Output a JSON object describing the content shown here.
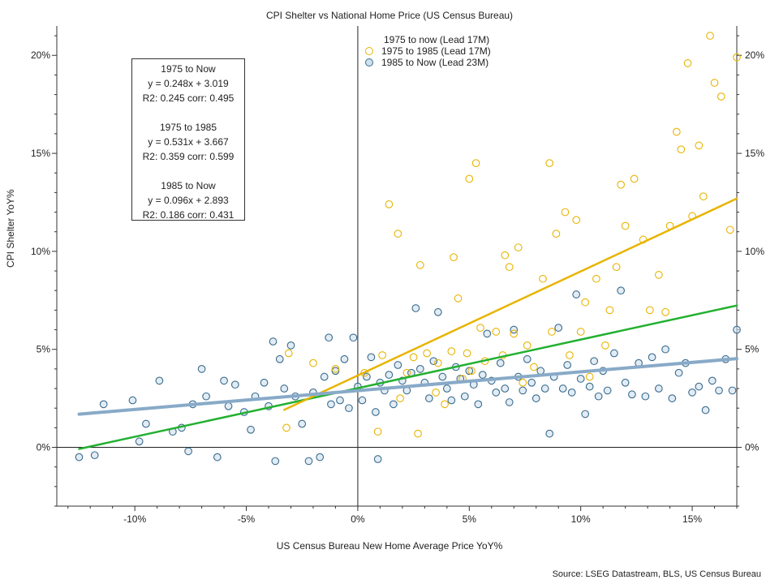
{
  "title": "CPI Shelter vs National Home Price (US Census Bureau)",
  "source": "Source: LSEG Datastream, BLS, US Census Bureau",
  "colors": {
    "yellow": "#e8b400",
    "blue": "#88aac8",
    "green": "#22b030",
    "dark_edge": "#3a6b8c"
  },
  "stats_box": {
    "b1_title": "1975 to Now",
    "b1_eq": "y = 0.248x + 3.019",
    "b1_r2": "R2: 0.245  corr: 0.495",
    "b2_title": "1975 to 1985",
    "b2_eq": "y = 0.531x + 3.667",
    "b2_r2": "R2: 0.359  corr: 0.599",
    "b3_title": "1985 to Now",
    "b3_eq": "y = 0.096x + 2.893",
    "b3_r2": "R2: 0.186  corr: 0.431"
  },
  "chart_data": {
    "type": "scatter",
    "title": "CPI Shelter vs National Home Price (US Census Bureau)",
    "xlabel": "US Census Bureau New Home Average Price YoY%",
    "ylabel": "CPI Shelter YoY%",
    "xlim": [
      -13.5,
      17
    ],
    "ylim": [
      -3,
      21.5
    ],
    "x_ticks": [
      -10,
      -5,
      0,
      5,
      10,
      15
    ],
    "x_tick_labels": [
      "-10%",
      "-5%",
      "0%",
      "5%",
      "10%",
      "15%"
    ],
    "y_ticks": [
      0,
      5,
      10,
      15,
      20
    ],
    "y_tick_labels": [
      "0%",
      "5%",
      "10%",
      "15%",
      "20%"
    ],
    "legend": {
      "placement": "top-center",
      "header": "1975 to now (Lead 17M)",
      "entries": [
        "1975 to 1985 (Lead 17M)",
        "1985 to Now (Lead 23M)"
      ]
    },
    "series": [
      {
        "name": "1975 to 1985 (Lead 17M)",
        "color": "#e8b400",
        "points": [
          [
            -3.2,
            1.0
          ],
          [
            -3.1,
            4.8
          ],
          [
            -2.0,
            4.3
          ],
          [
            -1.0,
            4.0
          ],
          [
            0.3,
            3.8
          ],
          [
            0.9,
            0.8
          ],
          [
            1.1,
            4.7
          ],
          [
            1.4,
            12.4
          ],
          [
            1.8,
            10.9
          ],
          [
            1.9,
            2.5
          ],
          [
            2.2,
            3.8
          ],
          [
            2.5,
            4.6
          ],
          [
            2.7,
            0.7
          ],
          [
            2.8,
            9.3
          ],
          [
            3.1,
            4.8
          ],
          [
            3.5,
            2.8
          ],
          [
            3.6,
            4.3
          ],
          [
            3.9,
            2.2
          ],
          [
            4.2,
            4.9
          ],
          [
            4.3,
            9.7
          ],
          [
            4.5,
            7.6
          ],
          [
            4.7,
            3.5
          ],
          [
            4.9,
            4.8
          ],
          [
            5.0,
            13.7
          ],
          [
            5.1,
            3.9
          ],
          [
            5.3,
            14.5
          ],
          [
            5.5,
            6.1
          ],
          [
            5.7,
            4.4
          ],
          [
            6.2,
            5.9
          ],
          [
            6.5,
            4.7
          ],
          [
            6.6,
            9.8
          ],
          [
            6.8,
            9.2
          ],
          [
            7.0,
            5.8
          ],
          [
            7.2,
            10.2
          ],
          [
            7.4,
            3.3
          ],
          [
            7.6,
            5.2
          ],
          [
            7.9,
            4.1
          ],
          [
            8.3,
            8.6
          ],
          [
            8.6,
            14.5
          ],
          [
            8.7,
            5.9
          ],
          [
            8.9,
            10.9
          ],
          [
            9.3,
            12.0
          ],
          [
            9.5,
            4.7
          ],
          [
            9.8,
            11.6
          ],
          [
            10.0,
            5.9
          ],
          [
            10.2,
            7.4
          ],
          [
            10.4,
            3.6
          ],
          [
            10.7,
            8.6
          ],
          [
            11.1,
            5.2
          ],
          [
            11.3,
            7.0
          ],
          [
            11.6,
            9.2
          ],
          [
            11.8,
            13.4
          ],
          [
            12.0,
            11.3
          ],
          [
            12.4,
            13.7
          ],
          [
            12.8,
            10.6
          ],
          [
            13.1,
            7.0
          ],
          [
            13.5,
            8.8
          ],
          [
            13.8,
            6.9
          ],
          [
            14.0,
            11.3
          ],
          [
            14.3,
            16.1
          ],
          [
            14.5,
            15.2
          ],
          [
            14.8,
            19.6
          ],
          [
            15.0,
            11.8
          ],
          [
            15.3,
            15.4
          ],
          [
            15.5,
            12.8
          ],
          [
            15.8,
            21.0
          ],
          [
            16.0,
            18.6
          ],
          [
            16.3,
            17.9
          ],
          [
            16.7,
            11.1
          ],
          [
            17.0,
            19.9
          ]
        ]
      },
      {
        "name": "1985 to Now (Lead 23M)",
        "color": "#88aac8",
        "points": [
          [
            -12.5,
            -0.5
          ],
          [
            -11.8,
            -0.4
          ],
          [
            -11.4,
            2.2
          ],
          [
            -10.1,
            2.4
          ],
          [
            -9.8,
            0.3
          ],
          [
            -9.5,
            1.2
          ],
          [
            -8.9,
            3.4
          ],
          [
            -8.3,
            0.8
          ],
          [
            -7.9,
            1.0
          ],
          [
            -7.6,
            -0.2
          ],
          [
            -7.4,
            2.2
          ],
          [
            -7.0,
            4.0
          ],
          [
            -6.8,
            2.6
          ],
          [
            -6.3,
            -0.5
          ],
          [
            -6.0,
            3.4
          ],
          [
            -5.8,
            2.1
          ],
          [
            -5.5,
            3.2
          ],
          [
            -5.1,
            1.8
          ],
          [
            -4.8,
            0.9
          ],
          [
            -4.6,
            2.6
          ],
          [
            -4.2,
            3.3
          ],
          [
            -4.0,
            2.1
          ],
          [
            -3.8,
            5.4
          ],
          [
            -3.7,
            -0.7
          ],
          [
            -3.5,
            4.5
          ],
          [
            -3.3,
            3.0
          ],
          [
            -3.0,
            5.2
          ],
          [
            -2.8,
            2.6
          ],
          [
            -2.5,
            1.2
          ],
          [
            -2.2,
            -0.7
          ],
          [
            -2.0,
            2.8
          ],
          [
            -1.7,
            -0.5
          ],
          [
            -1.5,
            3.6
          ],
          [
            -1.3,
            5.6
          ],
          [
            -1.2,
            2.2
          ],
          [
            -1.0,
            3.9
          ],
          [
            -0.8,
            2.4
          ],
          [
            -0.6,
            4.5
          ],
          [
            -0.4,
            2.0
          ],
          [
            -0.2,
            5.6
          ],
          [
            0.0,
            3.1
          ],
          [
            0.2,
            2.4
          ],
          [
            0.4,
            3.6
          ],
          [
            0.6,
            4.6
          ],
          [
            0.8,
            1.8
          ],
          [
            0.9,
            -0.6
          ],
          [
            1.0,
            3.3
          ],
          [
            1.2,
            2.9
          ],
          [
            1.4,
            3.7
          ],
          [
            1.6,
            2.2
          ],
          [
            1.8,
            4.2
          ],
          [
            2.0,
            3.4
          ],
          [
            2.2,
            2.9
          ],
          [
            2.4,
            3.8
          ],
          [
            2.6,
            7.1
          ],
          [
            2.8,
            4.0
          ],
          [
            3.0,
            3.3
          ],
          [
            3.2,
            2.5
          ],
          [
            3.4,
            4.4
          ],
          [
            3.6,
            6.9
          ],
          [
            3.8,
            3.6
          ],
          [
            4.0,
            3.0
          ],
          [
            4.2,
            2.4
          ],
          [
            4.4,
            4.1
          ],
          [
            4.6,
            3.5
          ],
          [
            4.8,
            2.6
          ],
          [
            5.0,
            3.9
          ],
          [
            5.2,
            3.2
          ],
          [
            5.4,
            2.2
          ],
          [
            5.6,
            3.7
          ],
          [
            5.8,
            5.8
          ],
          [
            6.0,
            3.4
          ],
          [
            6.2,
            2.8
          ],
          [
            6.4,
            4.3
          ],
          [
            6.6,
            3.0
          ],
          [
            6.8,
            2.3
          ],
          [
            7.0,
            6.0
          ],
          [
            7.2,
            3.6
          ],
          [
            7.4,
            2.9
          ],
          [
            7.6,
            4.5
          ],
          [
            7.8,
            3.3
          ],
          [
            8.0,
            2.5
          ],
          [
            8.2,
            3.9
          ],
          [
            8.4,
            3.0
          ],
          [
            8.6,
            0.7
          ],
          [
            8.8,
            3.6
          ],
          [
            9.0,
            6.1
          ],
          [
            9.2,
            3.0
          ],
          [
            9.4,
            4.2
          ],
          [
            9.6,
            2.8
          ],
          [
            9.8,
            7.8
          ],
          [
            10.0,
            3.5
          ],
          [
            10.2,
            1.7
          ],
          [
            10.4,
            3.1
          ],
          [
            10.6,
            4.4
          ],
          [
            10.8,
            2.6
          ],
          [
            11.0,
            3.9
          ],
          [
            11.2,
            2.9
          ],
          [
            11.5,
            4.8
          ],
          [
            11.8,
            8.0
          ],
          [
            12.0,
            3.3
          ],
          [
            12.3,
            2.7
          ],
          [
            12.6,
            4.3
          ],
          [
            12.9,
            2.6
          ],
          [
            13.2,
            4.6
          ],
          [
            13.5,
            3.0
          ],
          [
            13.8,
            5.0
          ],
          [
            14.1,
            2.5
          ],
          [
            14.4,
            3.8
          ],
          [
            14.7,
            4.3
          ],
          [
            15.0,
            2.8
          ],
          [
            15.3,
            3.1
          ],
          [
            15.6,
            1.9
          ],
          [
            15.9,
            3.4
          ],
          [
            16.2,
            2.9
          ],
          [
            16.5,
            4.5
          ],
          [
            16.8,
            2.9
          ],
          [
            17.0,
            6.0
          ]
        ]
      }
    ],
    "fit_lines": [
      {
        "label": "1975 to Now",
        "color": "#22b030",
        "slope": 0.248,
        "intercept": 3.019,
        "x_range": [
          -12.5,
          17
        ]
      },
      {
        "label": "1975 to 1985",
        "color": "#e8b400",
        "slope": 0.531,
        "intercept": 3.667,
        "x_range": [
          -3.3,
          17
        ]
      },
      {
        "label": "1985 to Now",
        "color": "#88aac8",
        "slope": 0.096,
        "intercept": 2.893,
        "x_range": [
          -12.5,
          17
        ]
      }
    ]
  }
}
